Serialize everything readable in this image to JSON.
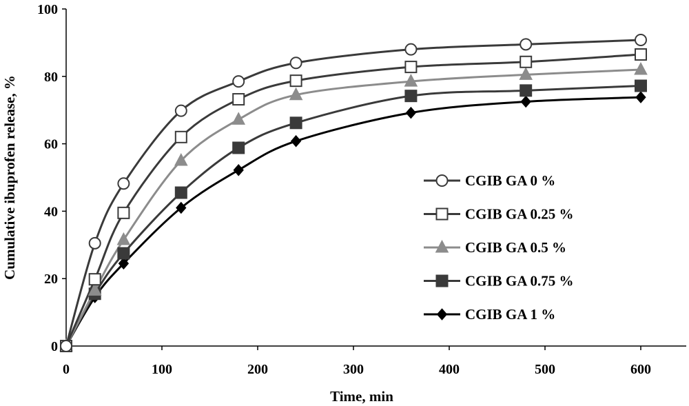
{
  "chart_data": {
    "type": "line",
    "title": "",
    "xlabel": "Time, min",
    "ylabel": "Cumulative ibuprofen release, %",
    "xlim": [
      0,
      660
    ],
    "ylim": [
      0,
      100
    ],
    "x_ticks": [
      0,
      100,
      200,
      300,
      400,
      500,
      600
    ],
    "y_ticks": [
      0,
      20,
      40,
      60,
      80,
      100
    ],
    "x_tick_labels": [
      "0",
      "100",
      "200",
      "300",
      "400",
      "500",
      "600"
    ],
    "y_tick_labels": [
      "0",
      "20",
      "40",
      "60",
      "80",
      "100"
    ],
    "grid": false,
    "legend_position": "center-right",
    "x": [
      0,
      30,
      60,
      120,
      180,
      240,
      360,
      480,
      600
    ],
    "series": [
      {
        "name": "CGIB GA 0 %",
        "marker": "circle-open",
        "color": "#3a3a3a",
        "values": [
          0,
          30.5,
          48.2,
          69.8,
          78.5,
          84.0,
          88.0,
          89.5,
          90.8
        ]
      },
      {
        "name": "CGIB GA 0.25 %",
        "marker": "square-open",
        "color": "#3a3a3a",
        "values": [
          0,
          19.8,
          39.5,
          62.0,
          73.2,
          78.7,
          82.8,
          84.3,
          86.5
        ]
      },
      {
        "name": "CGIB GA 0.5 %",
        "marker": "triangle",
        "color": "#8c8c8c",
        "values": [
          0,
          16.5,
          31.5,
          55.0,
          67.2,
          74.5,
          78.5,
          80.5,
          82.0
        ]
      },
      {
        "name": "CGIB GA 0.75 %",
        "marker": "square-filled",
        "color": "#3a3a3a",
        "values": [
          0,
          15.5,
          27.5,
          45.5,
          58.8,
          66.2,
          74.2,
          75.8,
          77.2
        ]
      },
      {
        "name": "CGIB GA 1 %",
        "marker": "diamond",
        "color": "#000000",
        "values": [
          0,
          14.5,
          24.5,
          41.0,
          52.2,
          60.8,
          69.2,
          72.5,
          73.8
        ]
      }
    ]
  }
}
